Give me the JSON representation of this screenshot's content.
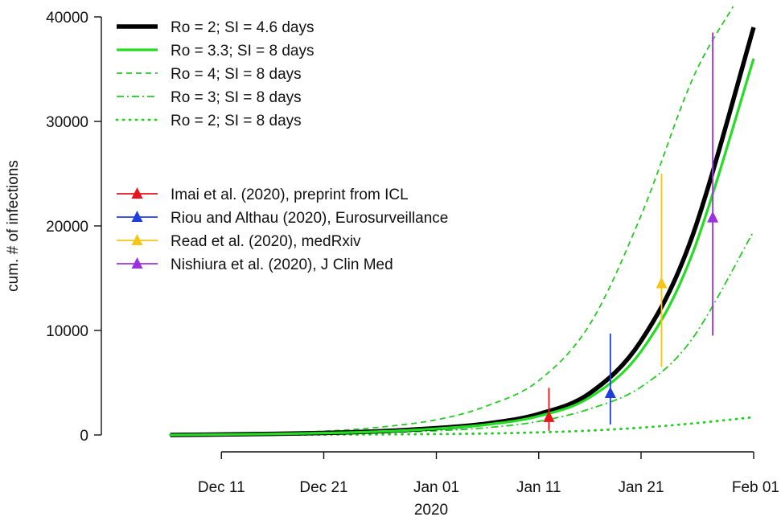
{
  "chart_data": {
    "type": "line",
    "ylabel": "cum. # of infections",
    "xlabel": "2020",
    "ylim": [
      0,
      40000
    ],
    "xlim": [
      "2019-12-01",
      "2020-02-01"
    ],
    "y_ticks": [
      {
        "value": 0,
        "label": "0"
      },
      {
        "value": 10000,
        "label": "10000"
      },
      {
        "value": 20000,
        "label": "20000"
      },
      {
        "value": 30000,
        "label": "30000"
      },
      {
        "value": 40000,
        "label": "40000"
      }
    ],
    "x_ticks": [
      {
        "date": "2019-12-11",
        "label": "Dec 11"
      },
      {
        "date": "2019-12-21",
        "label": "Dec 21"
      },
      {
        "date": "2020-01-01",
        "label": "Jan 01"
      },
      {
        "date": "2020-01-11",
        "label": "Jan 11"
      },
      {
        "date": "2020-01-21",
        "label": "Jan 21"
      },
      {
        "date": "2020-02-01",
        "label": "Feb 01"
      }
    ],
    "grid": false,
    "legend_position": "top-left",
    "series": [
      {
        "name": "Ro = 2; SI = 4.6 days",
        "color": "#000000",
        "style": "solid-thick",
        "x": [
          "2019-12-06",
          "2019-12-11",
          "2019-12-16",
          "2019-12-21",
          "2019-12-26",
          "2020-01-01",
          "2020-01-06",
          "2020-01-11",
          "2020-01-16",
          "2020-01-21",
          "2020-01-26",
          "2020-02-01"
        ],
        "y": [
          0,
          44,
          105,
          196,
          340,
          650,
          1100,
          2000,
          4000,
          9000,
          19000,
          39000
        ]
      },
      {
        "name": "Ro = 3.3; SI = 8 days",
        "color": "#22dd22",
        "style": "solid",
        "x": [
          "2019-12-06",
          "2019-12-11",
          "2019-12-16",
          "2019-12-21",
          "2019-12-26",
          "2020-01-01",
          "2020-01-06",
          "2020-01-11",
          "2020-01-16",
          "2020-01-21",
          "2020-01-26",
          "2020-02-01"
        ],
        "y": [
          0,
          40,
          95,
          180,
          310,
          600,
          1000,
          1800,
          3600,
          8000,
          17300,
          36000
        ]
      },
      {
        "name": "Ro = 4; SI = 8 days",
        "color": "#22cc22",
        "style": "dashed",
        "x": [
          "2019-12-06",
          "2019-12-11",
          "2019-12-16",
          "2019-12-21",
          "2019-12-26",
          "2020-01-01",
          "2020-01-06",
          "2020-01-11",
          "2020-01-16",
          "2020-01-21",
          "2020-01-26",
          "2020-01-30"
        ],
        "y": [
          0,
          70,
          180,
          360,
          700,
          1450,
          2800,
          5200,
          10600,
          21000,
          34000,
          41000
        ]
      },
      {
        "name": "Ro = 3; SI = 8 days",
        "color": "#22cc22",
        "style": "dashdot",
        "x": [
          "2019-12-06",
          "2019-12-11",
          "2019-12-16",
          "2019-12-21",
          "2019-12-26",
          "2020-01-01",
          "2020-01-06",
          "2020-01-11",
          "2020-01-16",
          "2020-01-21",
          "2020-01-26",
          "2020-02-01"
        ],
        "y": [
          0,
          25,
          60,
          115,
          200,
          400,
          700,
          1300,
          2500,
          4600,
          9200,
          19500
        ]
      },
      {
        "name": "Ro = 2; SI = 8 days",
        "color": "#22cc22",
        "style": "dotted",
        "x": [
          "2019-12-06",
          "2019-12-11",
          "2019-12-16",
          "2019-12-21",
          "2019-12-26",
          "2020-01-01",
          "2020-01-06",
          "2020-01-11",
          "2020-01-16",
          "2020-01-21",
          "2020-01-26",
          "2020-02-01"
        ],
        "y": [
          0,
          8,
          18,
          32,
          50,
          85,
          140,
          250,
          420,
          700,
          1100,
          1700
        ]
      }
    ],
    "estimates": [
      {
        "name": "Imai et al. (2020), preprint from ICL",
        "color": "#e8141b",
        "date": "2020-01-12",
        "value": 1700,
        "low": 400,
        "high": 4500
      },
      {
        "name": "Riou and Althau (2020), Eurosurveillance",
        "color": "#1f3fdd",
        "date": "2020-01-18",
        "value": 4000,
        "low": 1000,
        "high": 9700
      },
      {
        "name": "Read et al. (2020), medRxiv",
        "color": "#f5c518",
        "date": "2020-01-23",
        "value": 14500,
        "low": 6500,
        "high": 25000
      },
      {
        "name": "Nishiura et al. (2020), J Clin Med",
        "color": "#9b30e0",
        "date": "2020-01-28",
        "value": 20800,
        "low": 9500,
        "high": 38500
      }
    ]
  }
}
